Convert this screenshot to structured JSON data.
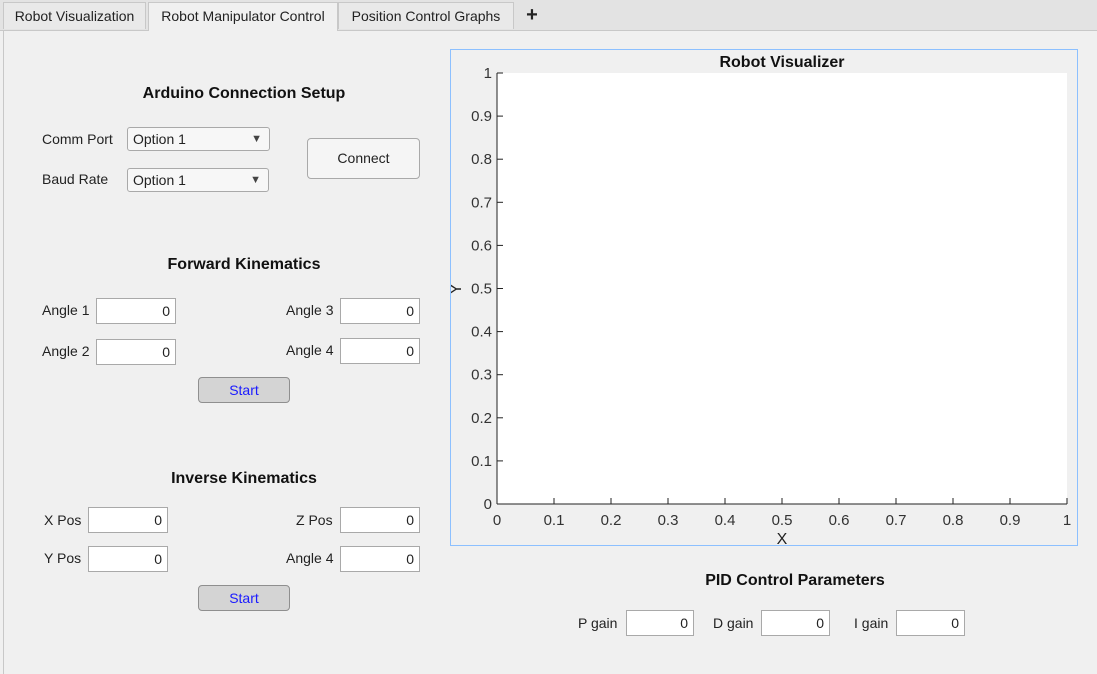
{
  "tabs": [
    {
      "label": "Robot Visualization",
      "active": false
    },
    {
      "label": "Robot Manipulator Control",
      "active": true
    },
    {
      "label": "Position Control Graphs",
      "active": false
    }
  ],
  "tab_add_label": "+",
  "arduino": {
    "title": "Arduino Connection Setup",
    "comm_port_label": "Comm Port",
    "comm_port_value": "Option 1",
    "baud_rate_label": "Baud Rate",
    "baud_rate_value": "Option 1",
    "connect_label": "Connect"
  },
  "forward": {
    "title": "Forward Kinematics",
    "angle1_label": "Angle 1",
    "angle1_value": "0",
    "angle2_label": "Angle 2",
    "angle2_value": "0",
    "angle3_label": "Angle 3",
    "angle3_value": "0",
    "angle4_label": "Angle 4",
    "angle4_value": "0",
    "start_label": "Start"
  },
  "inverse": {
    "title": "Inverse Kinematics",
    "xpos_label": "X Pos",
    "xpos_value": "0",
    "ypos_label": "Y Pos",
    "ypos_value": "0",
    "zpos_label": "Z Pos",
    "zpos_value": "0",
    "angle4_label": "Angle 4",
    "angle4_value": "0",
    "start_label": "Start"
  },
  "chart_data": {
    "type": "scatter",
    "title": "Robot Visualizer",
    "xlabel": "X",
    "ylabel": "Y",
    "xlim": [
      0,
      1
    ],
    "ylim": [
      0,
      1
    ],
    "xticks": [
      "0",
      "0.1",
      "0.2",
      "0.3",
      "0.4",
      "0.5",
      "0.6",
      "0.7",
      "0.8",
      "0.9",
      "1"
    ],
    "yticks": [
      "0",
      "0.1",
      "0.2",
      "0.3",
      "0.4",
      "0.5",
      "0.6",
      "0.7",
      "0.8",
      "0.9",
      "1"
    ],
    "series": [],
    "grid": false
  },
  "pid": {
    "title": "PID Control Parameters",
    "p_label": "P gain",
    "p_value": "0",
    "d_label": "D gain",
    "d_value": "0",
    "i_label": "I gain",
    "i_value": "0"
  }
}
